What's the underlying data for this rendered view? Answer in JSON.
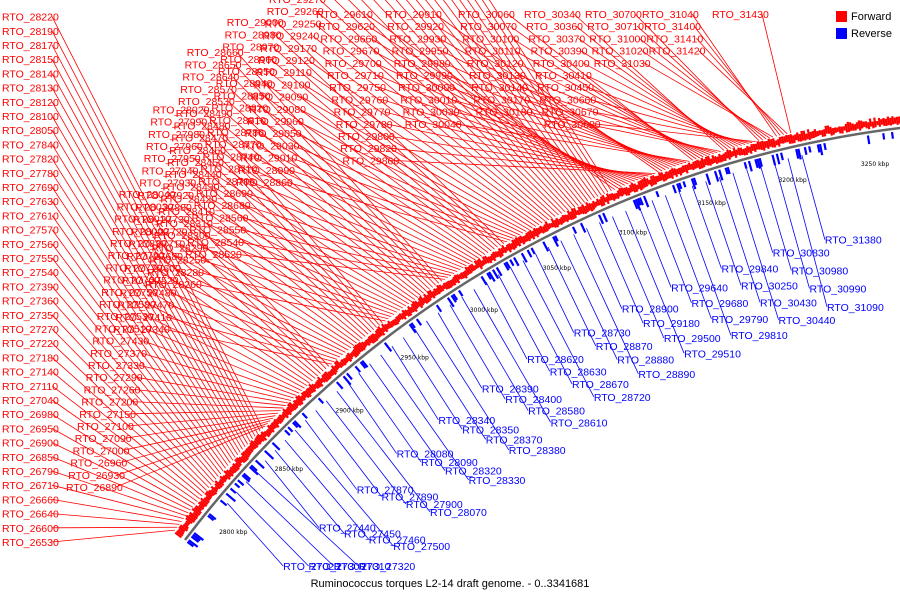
{
  "caption": "Ruminococcus torques L2-14 draft genome. - 0..3341681",
  "legend": [
    {
      "label": "Forward",
      "color": "#ff0000"
    },
    {
      "label": "Reverse",
      "color": "#0000ff"
    }
  ],
  "colors": {
    "forward": "#ff0000",
    "reverse": "#0000ff",
    "backbone": "#666666"
  },
  "scale_ticks": [
    "2800 kbp",
    "2850 kbp",
    "2900 kbp",
    "2950 kbp",
    "3000 kbp",
    "3050 kbp",
    "3100 kbp",
    "3150 kbp",
    "3200 kbp",
    "3250 kbp"
  ],
  "forward_genes": [
    "RTO_26530",
    "RTO_26600",
    "RTO_26640",
    "RTO_26660",
    "RTO_26710",
    "RTO_26790",
    "RTO_26850",
    "RTO_26900",
    "RTO_26950",
    "RTO_26980",
    "RTO_27040",
    "RTO_27110",
    "RTO_27140",
    "RTO_27180",
    "RTO_27220",
    "RTO_27270",
    "RTO_27350",
    "RTO_27360",
    "RTO_27390",
    "RTO_27540",
    "RTO_27550",
    "RTO_27560",
    "RTO_27570",
    "RTO_27610",
    "RTO_27630",
    "RTO_27690",
    "RTO_27780",
    "RTO_27820",
    "RTO_27840",
    "RTO_28050",
    "RTO_28100",
    "RTO_28120",
    "RTO_28130",
    "RTO_28140",
    "RTO_28150",
    "RTO_28170",
    "RTO_28190",
    "RTO_28220",
    "RTO_26890",
    "RTO_26930",
    "RTO_26960",
    "RTO_27000",
    "RTO_27090",
    "RTO_27100",
    "RTO_27150",
    "RTO_27200",
    "RTO_27260",
    "RTO_27290",
    "RTO_27330",
    "RTO_27370",
    "RTO_27430",
    "RTO_27510",
    "RTO_27530",
    "RTO_27580",
    "RTO_27750",
    "RTO_27760",
    "RTO_27770",
    "RTO_27790",
    "RTO_27830",
    "RTO_28000",
    "RTO_28010",
    "RTO_28030",
    "RTO_28040",
    "RTO_27340",
    "RTO_27410",
    "RTO_27470",
    "RTO_27480",
    "RTO_27520",
    "RTO_27600",
    "RTO_27680",
    "RTO_27710",
    "RTO_27720",
    "RTO_27730",
    "RTO_27880",
    "RTO_27920",
    "RTO_27930",
    "RTO_27940",
    "RTO_27950",
    "RTO_27960",
    "RTO_27980",
    "RTO_27990",
    "RTO_28020",
    "RTO_28260",
    "RTO_28280",
    "RTO_28250",
    "RTO_28290",
    "RTO_28300",
    "RTO_28310",
    "RTO_28410",
    "RTO_28420",
    "RTO_28430",
    "RTO_28440",
    "RTO_28450",
    "RTO_28460",
    "RTO_28470",
    "RTO_28480",
    "RTO_28490",
    "RTO_28530",
    "RTO_28570",
    "RTO_28640",
    "RTO_28650",
    "RTO_28660",
    "RTO_28520",
    "RTO_28540",
    "RTO_28550",
    "RTO_28560",
    "RTO_28680",
    "RTO_28690",
    "RTO_28700",
    "RTO_28710",
    "RTO_28740",
    "RTO_28770",
    "RTO_28780",
    "RTO_28810",
    "RTO_28820",
    "RTO_28850",
    "RTO_28940",
    "RTO_28950",
    "RTO_28960",
    "RTO_28970",
    "RTO_28980",
    "RTO_29000",
    "RTO_28860",
    "RTO_28990",
    "RTO_29010",
    "RTO_29030",
    "RTO_29050",
    "RTO_29060",
    "RTO_29080",
    "RTO_29090",
    "RTO_29100",
    "RTO_29110",
    "RTO_29120",
    "RTO_29170",
    "RTO_29240",
    "RTO_29250",
    "RTO_29260",
    "RTO_29270",
    "RTO_29280",
    "RTO_29300",
    "RTO_29320",
    "RTO_29330",
    "RTO_29340",
    "RTO_29350",
    "RTO_29410",
    "RTO_29420",
    "RTO_29440",
    "RTO_29450",
    "RTO_29470",
    "RTO_29530",
    "RTO_29540",
    "RTO_29550",
    "RTO_29560",
    "RTO_29570",
    "RTO_29580",
    "RTO_29610",
    "RTO_29620",
    "RTO_29660",
    "RTO_29670",
    "RTO_29700",
    "RTO_29710",
    "RTO_29750",
    "RTO_29760",
    "RTO_29770",
    "RTO_29780",
    "RTO_29800",
    "RTO_29820",
    "RTO_29860",
    "RTO_29910",
    "RTO_29920",
    "RTO_29930",
    "RTO_29950",
    "RTO_29980",
    "RTO_29990",
    "RTO_30000",
    "RTO_30010",
    "RTO_30030",
    "RTO_30040",
    "RTO_30060",
    "RTO_30070",
    "RTO_30100",
    "RTO_30110",
    "RTO_30120",
    "RTO_30130",
    "RTO_30140",
    "RTO_30170",
    "RTO_30180",
    "RTO_30340",
    "RTO_30360",
    "RTO_30370",
    "RTO_30390",
    "RTO_30400",
    "RTO_30410",
    "RTO_30450",
    "RTO_30660",
    "RTO_30670",
    "RTO_30680",
    "RTO_30700",
    "RTO_30710",
    "RTO_31000",
    "RTO_31020",
    "RTO_31030",
    "RTO_31040",
    "RTO_31400",
    "RTO_31410",
    "RTO_31420",
    "RTO_31430"
  ],
  "reverse_genes": [
    "RTO_27020",
    "RTO_27300",
    "RTO_27310",
    "RTO_27320",
    "RTO_27440",
    "RTO_27450",
    "RTO_27460",
    "RTO_27500",
    "RTO_27870",
    "RTO_27890",
    "RTO_27900",
    "RTO_28070",
    "RTO_28080",
    "RTO_28090",
    "RTO_28320",
    "RTO_28330",
    "RTO_28340",
    "RTO_28350",
    "RTO_28370",
    "RTO_28380",
    "RTO_28390",
    "RTO_28400",
    "RTO_28580",
    "RTO_28610",
    "RTO_28620",
    "RTO_28630",
    "RTO_28670",
    "RTO_28720",
    "RTO_28730",
    "RTO_28870",
    "RTO_28880",
    "RTO_28890",
    "RTO_28900",
    "RTO_29180",
    "RTO_29500",
    "RTO_29510",
    "RTO_29640",
    "RTO_29680",
    "RTO_29790",
    "RTO_29810",
    "RTO_29840",
    "RTO_30250",
    "RTO_30430",
    "RTO_30440",
    "RTO_30830",
    "RTO_30980",
    "RTO_30990",
    "RTO_31090",
    "RTO_31380"
  ]
}
